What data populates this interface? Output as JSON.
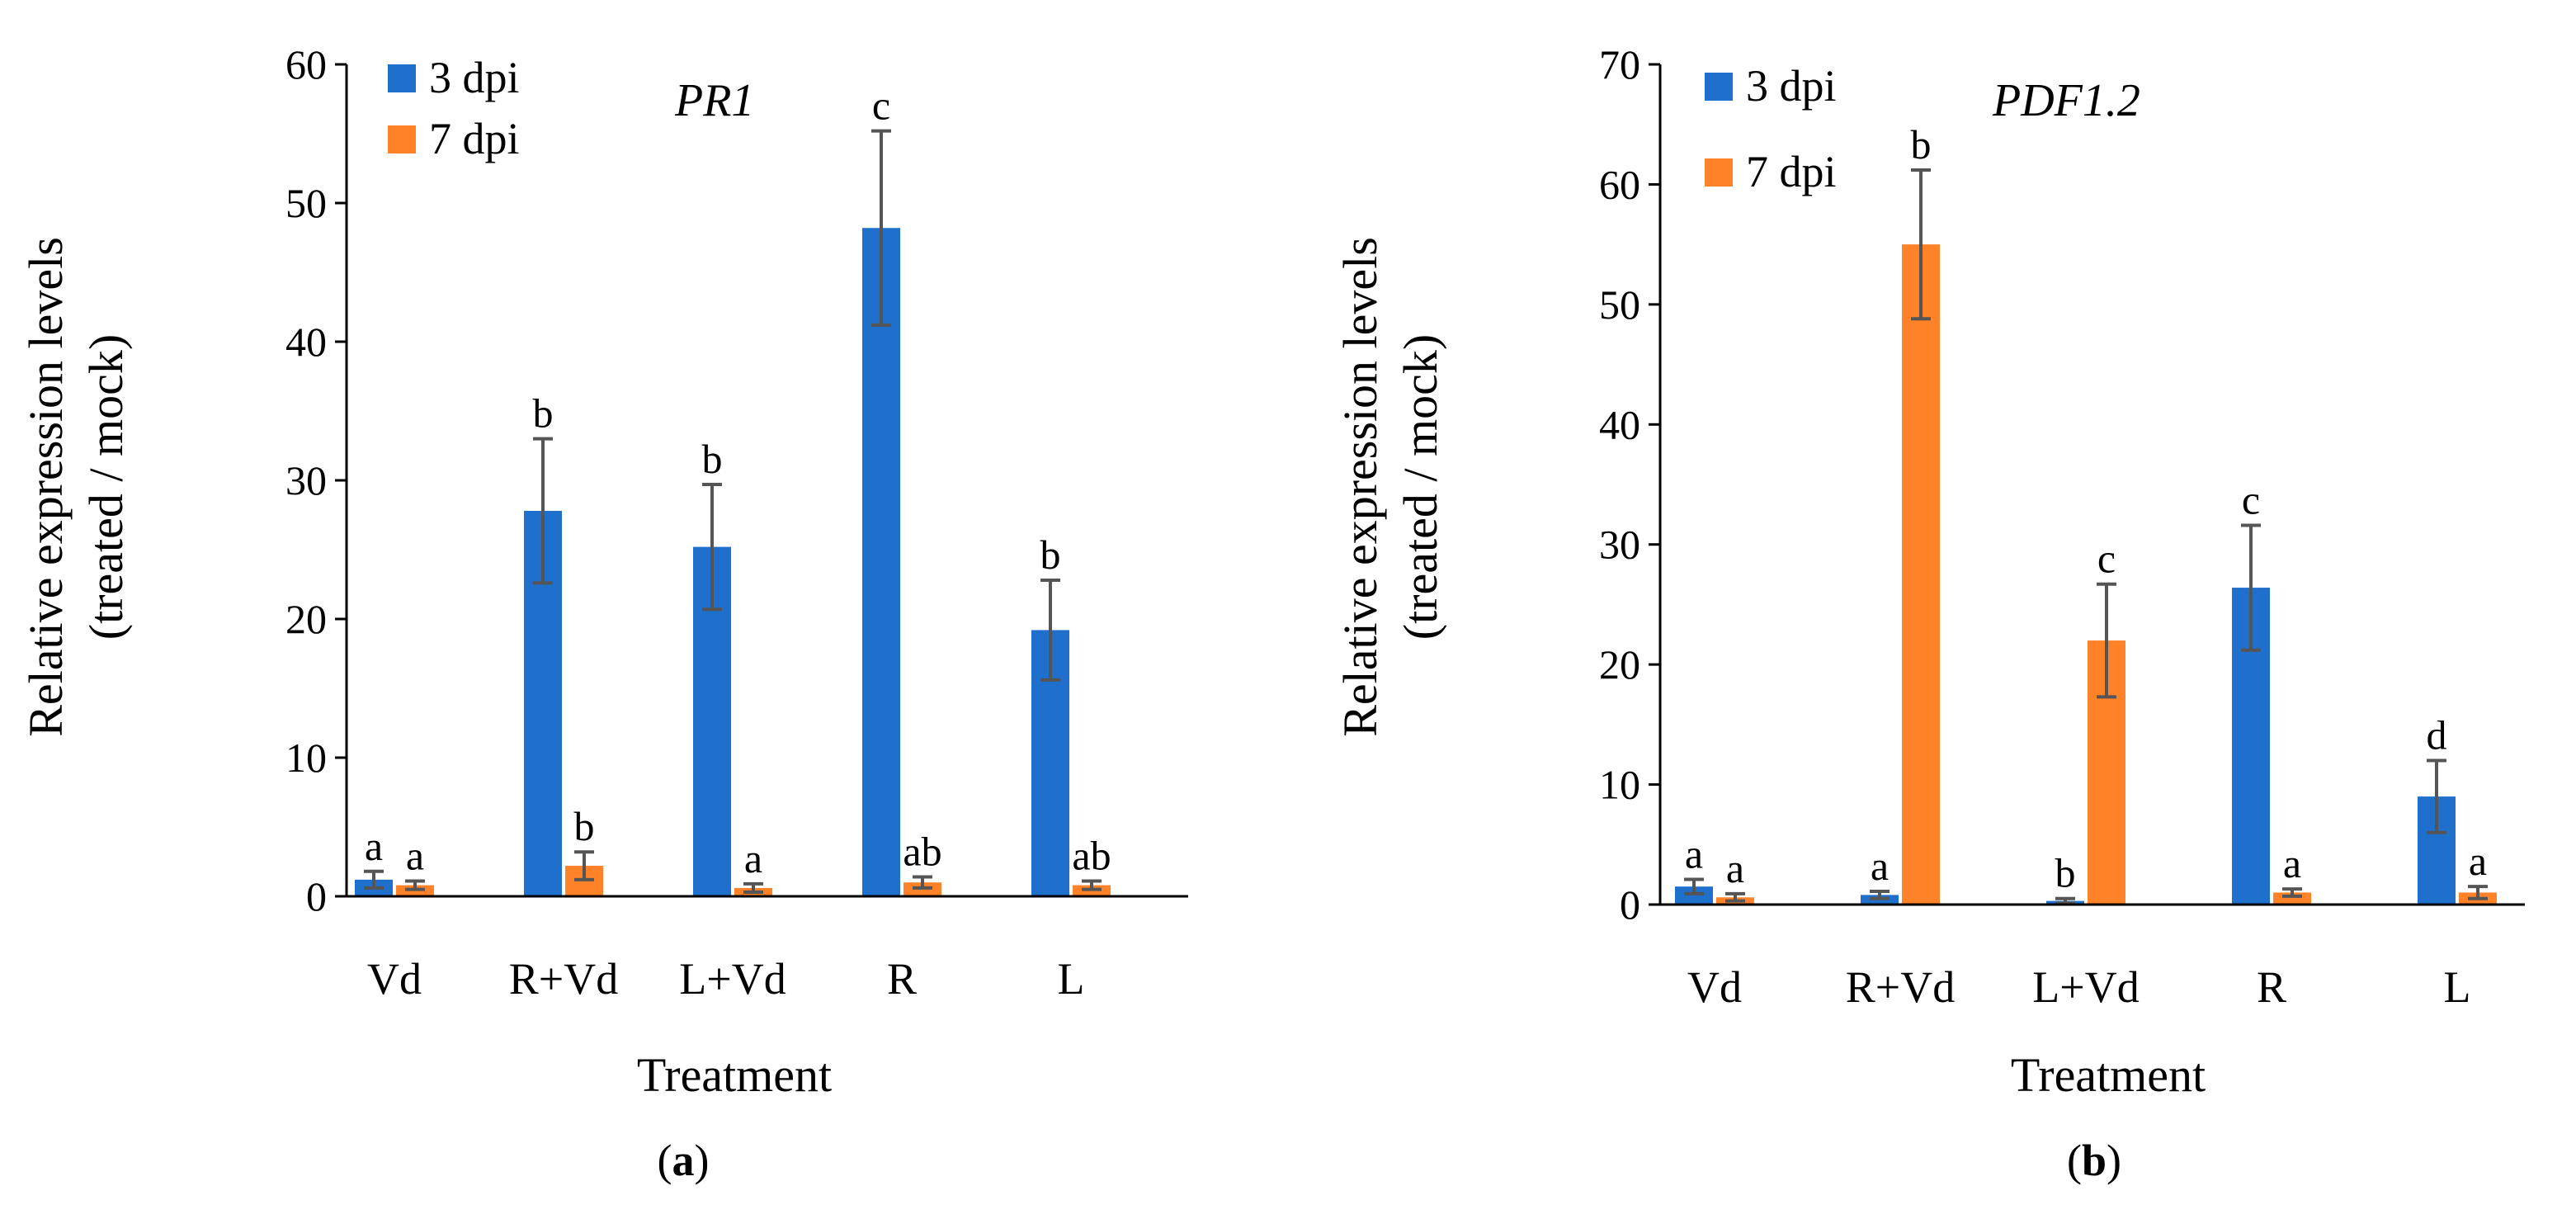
{
  "chart_data": [
    {
      "type": "bar",
      "gene": "PR1",
      "panel_letter": "a",
      "panel_open": "(",
      "panel_close": ")",
      "categories": [
        "Vd",
        "R+Vd",
        "L+Vd",
        "R",
        "L"
      ],
      "series": [
        {
          "name": "3 dpi",
          "color": "#1f6fcc",
          "values": [
            1.2,
            27.8,
            25.2,
            48.2,
            19.2
          ],
          "errors": [
            0.6,
            5.2,
            4.5,
            7.0,
            3.6
          ],
          "labels": [
            "a",
            "b",
            "b",
            "c",
            "b"
          ]
        },
        {
          "name": "7 dpi",
          "color": "#ff8228",
          "values": [
            0.8,
            2.2,
            0.6,
            1.0,
            0.8
          ],
          "errors": [
            0.3,
            1.0,
            0.3,
            0.4,
            0.3
          ],
          "labels": [
            "a",
            "b",
            "a",
            "ab",
            "ab"
          ]
        }
      ],
      "ylim": [
        0,
        60
      ],
      "yticks": [
        0,
        10,
        20,
        30,
        40,
        50,
        60
      ],
      "xlabel": "Treatment",
      "ylabel_line1": "Relative expression levels",
      "ylabel_line2": "(treated / mock)",
      "legend_position": "top-left"
    },
    {
      "type": "bar",
      "gene": "PDF1.2",
      "panel_letter": "b",
      "panel_open": "(",
      "panel_close": ")",
      "categories": [
        "Vd",
        "R+Vd",
        "L+Vd",
        "R",
        "L"
      ],
      "series": [
        {
          "name": "3 dpi",
          "color": "#1f6fcc",
          "values": [
            1.5,
            0.8,
            0.3,
            26.4,
            9.0
          ],
          "errors": [
            0.6,
            0.3,
            0.2,
            5.2,
            3.0
          ],
          "labels": [
            "a",
            "a",
            "b",
            "c",
            "d"
          ]
        },
        {
          "name": "7 dpi",
          "color": "#ff8228",
          "values": [
            0.6,
            55.0,
            22.0,
            1.0,
            1.0
          ],
          "errors": [
            0.3,
            6.2,
            4.7,
            0.3,
            0.5
          ],
          "labels": [
            "a",
            "b",
            "c",
            "a",
            "a"
          ]
        }
      ],
      "ylim": [
        0,
        70
      ],
      "yticks": [
        0,
        10,
        20,
        30,
        40,
        50,
        60,
        70
      ],
      "xlabel": "Treatment",
      "ylabel_line1": "Relative expression levels",
      "ylabel_line2": "(treated / mock)",
      "legend_position": "top-left"
    }
  ]
}
